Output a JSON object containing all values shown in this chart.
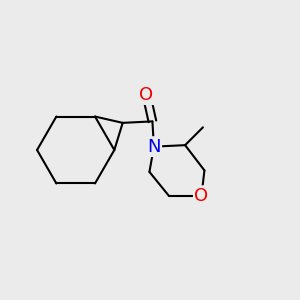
{
  "bg_color": "#ebebeb",
  "bond_color": "#000000",
  "N_color": "#0000ee",
  "O_color": "#ee0000",
  "line_width": 1.5,
  "font_size": 13,
  "xlim": [
    0.0,
    1.0
  ],
  "ylim": [
    0.1,
    0.9
  ]
}
